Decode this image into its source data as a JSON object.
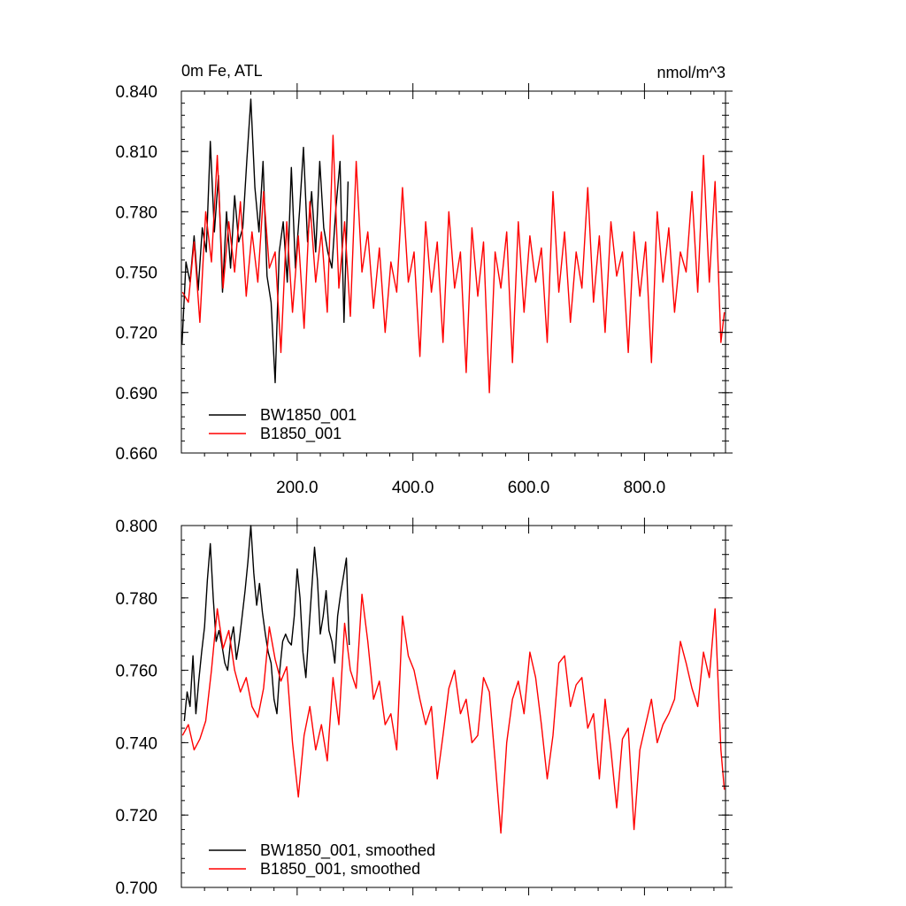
{
  "chart_data": [
    {
      "type": "line",
      "title": "0m Fe, ATL",
      "units_label": "nmol/m^3",
      "xlim": [
        0,
        940
      ],
      "ylim": [
        0.66,
        0.84
      ],
      "xticks": [
        200,
        400,
        600,
        800
      ],
      "xtick_labels": [
        "200.0",
        "400.0",
        "600.0",
        "800.0"
      ],
      "yticks": [
        0.66,
        0.69,
        0.72,
        0.75,
        0.78,
        0.81,
        0.84
      ],
      "ytick_labels": [
        "0.660",
        "0.690",
        "0.720",
        "0.750",
        "0.780",
        "0.810",
        "0.840"
      ],
      "grid": false,
      "legend": "bottom-left",
      "series": [
        {
          "name": "BW1850_001",
          "color": "#000000",
          "x": [
            1,
            8,
            15,
            22,
            29,
            36,
            43,
            50,
            57,
            64,
            71,
            78,
            85,
            92,
            99,
            106,
            113,
            120,
            127,
            134,
            141,
            148,
            155,
            162,
            169,
            176,
            183,
            190,
            197,
            204,
            211,
            218,
            225,
            232,
            239,
            246,
            253,
            260,
            267,
            274,
            281,
            288
          ],
          "y": [
            0.714,
            0.755,
            0.745,
            0.768,
            0.741,
            0.772,
            0.76,
            0.815,
            0.77,
            0.798,
            0.74,
            0.78,
            0.752,
            0.788,
            0.765,
            0.772,
            0.805,
            0.836,
            0.792,
            0.77,
            0.805,
            0.748,
            0.735,
            0.695,
            0.76,
            0.775,
            0.745,
            0.802,
            0.752,
            0.78,
            0.812,
            0.765,
            0.79,
            0.76,
            0.805,
            0.772,
            0.76,
            0.752,
            0.782,
            0.805,
            0.725,
            0.795
          ]
        },
        {
          "name": "B1850_001",
          "color": "#ff0000",
          "x": [
            2,
            12,
            22,
            32,
            42,
            52,
            62,
            72,
            82,
            92,
            102,
            112,
            122,
            132,
            142,
            152,
            162,
            172,
            182,
            192,
            202,
            212,
            222,
            232,
            242,
            252,
            262,
            272,
            282,
            292,
            302,
            312,
            322,
            332,
            342,
            352,
            362,
            372,
            382,
            392,
            402,
            412,
            422,
            432,
            442,
            452,
            462,
            472,
            482,
            492,
            502,
            512,
            522,
            532,
            542,
            552,
            562,
            572,
            582,
            592,
            602,
            612,
            622,
            632,
            642,
            652,
            662,
            672,
            682,
            692,
            702,
            712,
            722,
            732,
            742,
            752,
            762,
            772,
            782,
            792,
            802,
            812,
            822,
            832,
            842,
            852,
            862,
            872,
            882,
            892,
            902,
            912,
            922,
            932,
            938
          ],
          "y": [
            0.74,
            0.735,
            0.765,
            0.725,
            0.78,
            0.755,
            0.808,
            0.742,
            0.775,
            0.75,
            0.785,
            0.738,
            0.77,
            0.745,
            0.79,
            0.752,
            0.76,
            0.71,
            0.775,
            0.73,
            0.768,
            0.722,
            0.785,
            0.745,
            0.77,
            0.73,
            0.818,
            0.742,
            0.775,
            0.728,
            0.805,
            0.75,
            0.77,
            0.732,
            0.762,
            0.72,
            0.755,
            0.74,
            0.792,
            0.745,
            0.76,
            0.708,
            0.775,
            0.74,
            0.765,
            0.715,
            0.78,
            0.742,
            0.76,
            0.7,
            0.772,
            0.738,
            0.765,
            0.69,
            0.76,
            0.742,
            0.77,
            0.705,
            0.775,
            0.73,
            0.768,
            0.745,
            0.762,
            0.715,
            0.79,
            0.74,
            0.77,
            0.725,
            0.76,
            0.742,
            0.792,
            0.735,
            0.768,
            0.72,
            0.775,
            0.748,
            0.76,
            0.71,
            0.77,
            0.738,
            0.765,
            0.705,
            0.78,
            0.745,
            0.772,
            0.73,
            0.76,
            0.75,
            0.79,
            0.74,
            0.808,
            0.745,
            0.795,
            0.715,
            0.73
          ]
        }
      ]
    },
    {
      "type": "line",
      "xlim": [
        0,
        940
      ],
      "ylim": [
        0.7,
        0.8
      ],
      "xticks": [
        200,
        400,
        600,
        800
      ],
      "yticks": [
        0.7,
        0.72,
        0.74,
        0.76,
        0.78,
        0.8
      ],
      "ytick_labels": [
        "0.700",
        "0.720",
        "0.740",
        "0.760",
        "0.780",
        "0.800"
      ],
      "grid": false,
      "legend": "bottom-left",
      "series": [
        {
          "name": "BW1850_001, smoothed",
          "color": "#000000",
          "x": [
            5,
            10,
            15,
            20,
            25,
            30,
            35,
            40,
            45,
            50,
            55,
            60,
            65,
            70,
            75,
            80,
            85,
            90,
            95,
            100,
            105,
            110,
            115,
            120,
            125,
            130,
            135,
            140,
            145,
            150,
            155,
            160,
            165,
            170,
            175,
            180,
            185,
            190,
            195,
            200,
            205,
            210,
            215,
            220,
            225,
            230,
            235,
            240,
            245,
            250,
            255,
            260,
            265,
            270,
            275,
            280,
            285,
            290
          ],
          "y": [
            0.746,
            0.754,
            0.75,
            0.764,
            0.748,
            0.757,
            0.765,
            0.772,
            0.785,
            0.795,
            0.78,
            0.768,
            0.771,
            0.767,
            0.762,
            0.76,
            0.768,
            0.772,
            0.763,
            0.768,
            0.775,
            0.782,
            0.79,
            0.8,
            0.787,
            0.778,
            0.784,
            0.776,
            0.77,
            0.765,
            0.762,
            0.752,
            0.748,
            0.76,
            0.768,
            0.77,
            0.768,
            0.767,
            0.775,
            0.788,
            0.78,
            0.765,
            0.758,
            0.77,
            0.782,
            0.794,
            0.785,
            0.77,
            0.775,
            0.782,
            0.771,
            0.768,
            0.762,
            0.775,
            0.781,
            0.786,
            0.791,
            0.767
          ]
        },
        {
          "name": "B1850_001, smoothed",
          "color": "#ff0000",
          "x": [
            2,
            12,
            22,
            32,
            42,
            52,
            62,
            72,
            82,
            92,
            102,
            112,
            122,
            132,
            142,
            152,
            162,
            172,
            182,
            192,
            202,
            212,
            222,
            232,
            242,
            252,
            262,
            272,
            282,
            292,
            302,
            312,
            322,
            332,
            342,
            352,
            362,
            372,
            382,
            392,
            402,
            412,
            422,
            432,
            442,
            452,
            462,
            472,
            482,
            492,
            502,
            512,
            522,
            532,
            542,
            552,
            562,
            572,
            582,
            592,
            602,
            612,
            622,
            632,
            642,
            652,
            662,
            672,
            682,
            692,
            702,
            712,
            722,
            732,
            742,
            752,
            762,
            772,
            782,
            792,
            802,
            812,
            822,
            832,
            842,
            852,
            862,
            872,
            882,
            892,
            902,
            912,
            922,
            932,
            938
          ],
          "y": [
            0.742,
            0.745,
            0.738,
            0.741,
            0.746,
            0.76,
            0.777,
            0.766,
            0.771,
            0.76,
            0.754,
            0.758,
            0.75,
            0.747,
            0.755,
            0.772,
            0.763,
            0.757,
            0.761,
            0.74,
            0.725,
            0.742,
            0.75,
            0.738,
            0.745,
            0.735,
            0.758,
            0.745,
            0.773,
            0.76,
            0.755,
            0.781,
            0.768,
            0.752,
            0.757,
            0.745,
            0.748,
            0.738,
            0.775,
            0.764,
            0.76,
            0.752,
            0.745,
            0.75,
            0.73,
            0.742,
            0.755,
            0.76,
            0.748,
            0.752,
            0.74,
            0.742,
            0.758,
            0.754,
            0.735,
            0.715,
            0.74,
            0.752,
            0.757,
            0.748,
            0.765,
            0.758,
            0.745,
            0.73,
            0.742,
            0.762,
            0.764,
            0.75,
            0.756,
            0.758,
            0.744,
            0.748,
            0.73,
            0.752,
            0.738,
            0.722,
            0.741,
            0.744,
            0.716,
            0.738,
            0.745,
            0.752,
            0.74,
            0.745,
            0.748,
            0.752,
            0.768,
            0.762,
            0.755,
            0.75,
            0.765,
            0.758,
            0.777,
            0.738,
            0.727
          ]
        }
      ]
    }
  ]
}
